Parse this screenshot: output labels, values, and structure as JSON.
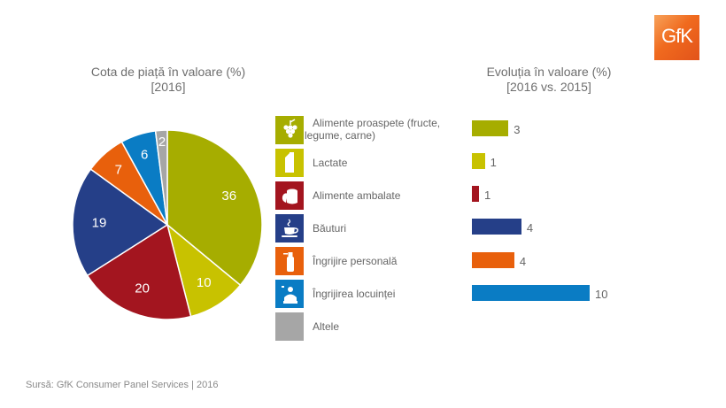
{
  "logo": {
    "text": "GfK",
    "color": "#f06a1e"
  },
  "source": "Sursă: GfK Consumer Panel Services | 2016",
  "categories": [
    {
      "label": "Alimente proaspete (fructe, legume, carne)",
      "icon": "grapes-icon",
      "color": "#a6ad00"
    },
    {
      "label": "Lactate",
      "icon": "milk-carton-icon",
      "color": "#c8c200"
    },
    {
      "label": "Alimente ambalate",
      "icon": "packaged-food-icon",
      "color": "#a3151f"
    },
    {
      "label": "Băuturi",
      "icon": "coffee-cup-icon",
      "color": "#253f88"
    },
    {
      "label": "Îngrijire personală",
      "icon": "spray-bottle-icon",
      "color": "#e8600c"
    },
    {
      "label": "Îngrijirea locuinței",
      "icon": "cleaning-icon",
      "color": "#0a7cc4"
    },
    {
      "label": "Altele",
      "icon": "",
      "color": "#a6a6a6"
    }
  ],
  "chart_data": [
    {
      "type": "pie",
      "title": "Cota de piață în valoare (%)",
      "subtitle": "[2016]",
      "categories": [
        "Alimente proaspete (fructe, legume, carne)",
        "Lactate",
        "Alimente ambalate",
        "Băuturi",
        "Îngrijire personală",
        "Îngrijirea locuinței",
        "Altele"
      ],
      "values": [
        36,
        10,
        20,
        19,
        7,
        6,
        2
      ],
      "labels": [
        "36",
        "10",
        "20",
        "19",
        "7",
        "6",
        "2"
      ],
      "colors": [
        "#a6ad00",
        "#c8c200",
        "#a3151f",
        "#253f88",
        "#e8600c",
        "#0a7cc4",
        "#a6a6a6"
      ],
      "start": "12 o'clock, clockwise",
      "legend": "right"
    },
    {
      "type": "bar",
      "orientation": "horizontal",
      "title": "Evoluția în valoare (%)",
      "subtitle": "[2016 vs. 2015]",
      "categories": [
        "Alimente proaspete (fructe, legume, carne)",
        "Lactate",
        "Îngrijire personală",
        "Alimente ambalate",
        "Băuturi",
        "Îngrijirea locuinței",
        "Altele"
      ],
      "rows": [
        {
          "category": "Alimente proaspete (fructe, legume, carne)",
          "value": 3.1,
          "label": "3",
          "color": "#a6ad00"
        },
        {
          "category": "Lactate",
          "value": 1.1,
          "label": "1",
          "color": "#c8c200"
        },
        {
          "category": "Alimente ambalate",
          "value": 0.6,
          "label": "1",
          "color": "#a3151f"
        },
        {
          "category": "Băuturi",
          "value": 4.2,
          "label": "4",
          "color": "#253f88"
        },
        {
          "category": "Îngrijire personală",
          "value": 3.6,
          "label": "4",
          "color": "#e8600c"
        },
        {
          "category": "Îngrijirea locuinței",
          "value": 10,
          "label": "10",
          "color": "#0a7cc4"
        }
      ],
      "xlim": [
        0,
        10.5
      ],
      "grid": false,
      "axes_visible": false
    }
  ]
}
